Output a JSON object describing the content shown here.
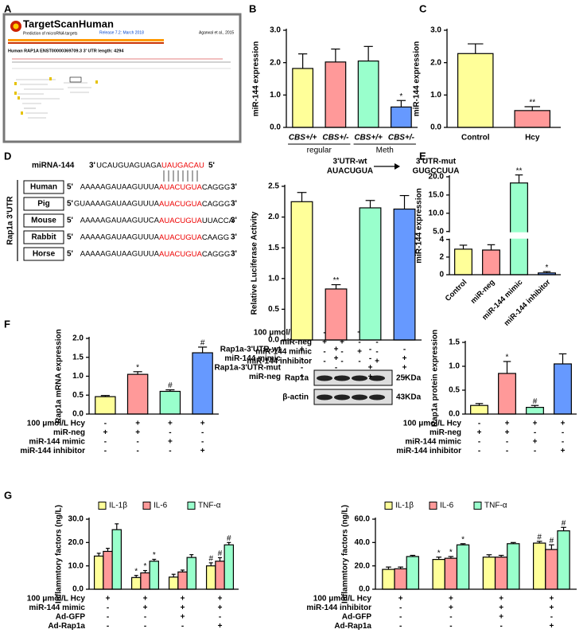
{
  "panels": [
    "A",
    "B",
    "C",
    "D",
    "E",
    "F",
    "G"
  ],
  "targetscan": {
    "logo": "TargetScanHuman",
    "tagline": "Prediction of microRNA targets",
    "release": "Release 7.2: March 2018",
    "citation": "Agarwal et al., 2015",
    "transcript": "Human RAP1A ENST00000369709.3  3' UTR length: 4294"
  },
  "alignment": {
    "mirna_name": "miRNA-144",
    "mirna_ends": [
      "3'",
      "5'"
    ],
    "mirna_seq": [
      "UCAUGUAGUAGA",
      "UAUGACAU"
    ],
    "ends": [
      "5'",
      "3'"
    ],
    "title": "Rap1a 3'UTR",
    "species": [
      {
        "name": "Human",
        "seq": [
          "AAAAAGAUAAGUUUA",
          "AUACUGUA",
          "CAGGG"
        ]
      },
      {
        "name": "Pig",
        "seq": [
          "GUAAAAGAUAAGUUUA",
          "AUACUGUA",
          "CAGGG"
        ]
      },
      {
        "name": "Mouse",
        "seq": [
          "AAAAAGAUAAGUUCA",
          "AUACUGUA",
          "UUACCA"
        ]
      },
      {
        "name": "Rabbit",
        "seq": [
          "AAAAAGAUAAGUUUA",
          "AUACUGUA",
          "CAAGG"
        ]
      },
      {
        "name": "Horse",
        "seq": [
          "AAAAAGAUAAGUUUA",
          "AUACUGUA",
          "CAGGG"
        ]
      }
    ]
  },
  "utr_change": {
    "wt_label": "3'UTR-wt",
    "wt_seq": "AUACUGUA",
    "mut_label": "3'UTR-mut",
    "mut_seq": "GUGCCUUA"
  },
  "blot": {
    "conditions": [
      {
        "label": "100 μmol/L Hcy",
        "marks": [
          "-",
          "+",
          "+",
          "+"
        ]
      },
      {
        "label": "miR-neg",
        "marks": [
          "+",
          "+",
          "-",
          "-"
        ]
      },
      {
        "label": "miR-144 mimic",
        "marks": [
          "-",
          "-",
          "+",
          "-"
        ]
      },
      {
        "label": "miR-144 inhibitor",
        "marks": [
          "-",
          "-",
          "-",
          "+"
        ]
      }
    ],
    "bands": [
      {
        "label": "Rap1a",
        "size": "25KDa"
      },
      {
        "label": "β-actin",
        "size": "43KDa"
      }
    ]
  },
  "chart_data": [
    {
      "type": "bar",
      "ylabel": "miR-144 expression",
      "categories": [
        "CBS+/+",
        "CBS+/-",
        "CBS+/+",
        "CBS+/-"
      ],
      "group_labels": [
        "regular",
        "Meth"
      ],
      "values": [
        1.82,
        2.02,
        2.05,
        0.63
      ],
      "errors": [
        0.45,
        0.4,
        0.45,
        0.2
      ],
      "annotations": [
        null,
        null,
        null,
        "*"
      ],
      "colors": [
        "#ffff99",
        "#ff9999",
        "#99ffcc",
        "#6699ff"
      ],
      "ylim": [
        0,
        3
      ],
      "yticks": [
        {
          "value": 0,
          "label": "0.0"
        },
        {
          "value": 1,
          "label": "1.0"
        },
        {
          "value": 2,
          "label": "2.0"
        },
        {
          "value": 3,
          "label": "3.0"
        }
      ]
    },
    {
      "type": "bar",
      "ylabel": "miR-144  expression",
      "categories": [
        "Control",
        "Hcy"
      ],
      "values": [
        2.28,
        0.52
      ],
      "errors": [
        0.3,
        0.12
      ],
      "annotations": [
        null,
        "**"
      ],
      "colors": [
        "#ffff99",
        "#ff9999"
      ],
      "ylim": [
        0,
        3
      ],
      "yticks": [
        {
          "value": 0,
          "label": "0.0"
        },
        {
          "value": 1,
          "label": "1.0"
        },
        {
          "value": 2,
          "label": "2.0"
        },
        {
          "value": 3,
          "label": "3.0"
        }
      ]
    },
    {
      "type": "bar",
      "ylabel": "Relative Luciferase Activity",
      "values": [
        2.25,
        0.83,
        2.15,
        2.13
      ],
      "errors": [
        0.15,
        0.07,
        0.12,
        0.22
      ],
      "annotations": [
        null,
        "**",
        null,
        null
      ],
      "colors": [
        "#ffff99",
        "#ff9999",
        "#99ffcc",
        "#6699ff"
      ],
      "ylim": [
        0,
        2.5
      ],
      "yticks": [
        {
          "value": 0,
          "label": "0.0"
        },
        0.5,
        {
          "value": 1,
          "label": "1.0"
        },
        1.5,
        {
          "value": 2,
          "label": "2.0"
        },
        2.5
      ],
      "conditions": [
        {
          "label": "Rap1a-3'UTR-wt",
          "marks": [
            "+",
            "+",
            "-",
            "-"
          ]
        },
        {
          "label": "miR-144 mimic",
          "marks": [
            "-",
            "+",
            "-",
            "+"
          ]
        },
        {
          "label": "Rap1a-3'UTR-mut",
          "marks": [
            "-",
            "-",
            "+",
            "+"
          ]
        },
        {
          "label": "miR-neg",
          "marks": [
            "+",
            "-",
            "+",
            "-"
          ]
        }
      ]
    },
    {
      "type": "bar",
      "ylabel": "miR-144 expression",
      "categories": [
        "Control",
        "miR-neg",
        "miR-144 mimic",
        "miR-144 inhibitor"
      ],
      "values": [
        2.9,
        2.8,
        18.3,
        0.2
      ],
      "errors": [
        0.45,
        0.6,
        2.2,
        0.15
      ],
      "annotations": [
        null,
        null,
        "**",
        "*"
      ],
      "colors": [
        "#ffff99",
        "#ff9999",
        "#99ffcc",
        "#6699ff"
      ],
      "ylim": [
        0,
        20
      ],
      "ybreak": [
        4,
        5
      ],
      "yticks": [
        0,
        2,
        4,
        {
          "value": 5,
          "label": "5.0"
        },
        {
          "value": 10,
          "label": "10.0"
        },
        {
          "value": 15,
          "label": "15.0"
        },
        {
          "value": 20,
          "label": "20.0"
        }
      ]
    },
    {
      "type": "bar",
      "ylabel": "Rap1a mRNA expression",
      "values": [
        0.46,
        1.05,
        0.6,
        1.62
      ],
      "errors": [
        0.03,
        0.07,
        0.04,
        0.15
      ],
      "annotations": [
        null,
        "*",
        "#",
        "#"
      ],
      "colors": [
        "#ffff99",
        "#ff9999",
        "#99ffcc",
        "#6699ff"
      ],
      "ylim": [
        0,
        2
      ],
      "yticks": [
        {
          "value": 0,
          "label": "0.0"
        },
        0.5,
        {
          "value": 1,
          "label": "1.0"
        },
        1.5,
        {
          "value": 2,
          "label": "2.0"
        }
      ],
      "conditions": [
        {
          "label": "100 μmol/L Hcy",
          "marks": [
            "-",
            "+",
            "+",
            "+"
          ]
        },
        {
          "label": "miR-neg",
          "marks": [
            "+",
            "+",
            "-",
            "-"
          ]
        },
        {
          "label": "miR-144 mimic",
          "marks": [
            "-",
            "-",
            "+",
            "-"
          ]
        },
        {
          "label": "miR-144 inhibitor",
          "marks": [
            "-",
            "-",
            "-",
            "+"
          ]
        }
      ]
    },
    {
      "type": "bar",
      "ylabel": "Rap1a protein expression",
      "values": [
        0.18,
        0.85,
        0.14,
        1.05
      ],
      "errors": [
        0.04,
        0.25,
        0.04,
        0.21
      ],
      "annotations": [
        null,
        "*",
        "#",
        null
      ],
      "colors": [
        "#ffff99",
        "#ff9999",
        "#99ffcc",
        "#6699ff"
      ],
      "ylim": [
        0,
        1.5
      ],
      "yticks": [
        {
          "value": 0,
          "label": "0.0"
        },
        0.5,
        {
          "value": 1,
          "label": "1.0"
        },
        1.5
      ],
      "conditions": [
        {
          "label": "100 μmol/L Hcy",
          "marks": [
            "-",
            "+",
            "+",
            "+"
          ]
        },
        {
          "label": "miR-neg",
          "marks": [
            "+",
            "+",
            "-",
            "-"
          ]
        },
        {
          "label": "miR-144 mimic",
          "marks": [
            "-",
            "-",
            "+",
            "-"
          ]
        },
        {
          "label": "miR-144 inhibitor",
          "marks": [
            "-",
            "-",
            "-",
            "+"
          ]
        }
      ]
    },
    {
      "type": "bar",
      "ylabel": "Inflammtory factors (ng/L)",
      "ylim": [
        0,
        30
      ],
      "yticks": [
        {
          "value": 0,
          "label": "0.0"
        },
        {
          "value": 10,
          "label": "10.0"
        },
        {
          "value": 20,
          "label": "20.0"
        },
        {
          "value": 30,
          "label": "30.0"
        }
      ],
      "series": [
        {
          "name": "IL-1β",
          "color": "#ffff99",
          "values": [
            14.2,
            5.0,
            5.2,
            10.0
          ],
          "errors": [
            1.2,
            0.9,
            1.2,
            1.3
          ],
          "annotations": [
            null,
            "*",
            null,
            "#"
          ]
        },
        {
          "name": "IL-6",
          "color": "#ff9999",
          "values": [
            16.2,
            7.0,
            7.4,
            12.0
          ],
          "errors": [
            1.3,
            1.0,
            0.8,
            1.5
          ],
          "annotations": [
            null,
            "*",
            null,
            "#"
          ]
        },
        {
          "name": "TNF-α",
          "color": "#99ffcc",
          "values": [
            25.5,
            12.0,
            13.6,
            19.0
          ],
          "errors": [
            2.5,
            0.8,
            1.2,
            1.0
          ],
          "annotations": [
            null,
            "*",
            null,
            "#"
          ]
        }
      ],
      "conditions": [
        {
          "label": "100 μmol/L Hcy",
          "marks": [
            "+",
            "+",
            "+",
            "+"
          ]
        },
        {
          "label": "miR-144 mimic",
          "marks": [
            "-",
            "+",
            "+",
            "+"
          ]
        },
        {
          "label": "Ad-GFP",
          "marks": [
            "-",
            "-",
            "+",
            "-"
          ]
        },
        {
          "label": "Ad-Rap1a",
          "marks": [
            "-",
            "-",
            "-",
            "+"
          ]
        }
      ]
    },
    {
      "type": "bar",
      "ylabel": "Inflammtory factors (ng/L)",
      "ylim": [
        0,
        60
      ],
      "yticks": [
        {
          "value": 0,
          "label": "0.0"
        },
        {
          "value": 20,
          "label": "20.0"
        },
        {
          "value": 40,
          "label": "40.0"
        },
        {
          "value": 60,
          "label": "60.0"
        }
      ],
      "series": [
        {
          "name": "IL-1β",
          "color": "#ffff99",
          "values": [
            17,
            25.5,
            27.5,
            39.5
          ],
          "errors": [
            2,
            2,
            2,
            1.5
          ],
          "annotations": [
            null,
            "*",
            null,
            "#"
          ]
        },
        {
          "name": "IL-6",
          "color": "#ff9999",
          "values": [
            17.5,
            26.5,
            27.5,
            34
          ],
          "errors": [
            1.5,
            1.5,
            1.5,
            4
          ],
          "annotations": [
            null,
            "*",
            null,
            "#"
          ]
        },
        {
          "name": "TNF-α",
          "color": "#99ffcc",
          "values": [
            28,
            38,
            39,
            50
          ],
          "errors": [
            1,
            1,
            1,
            3
          ],
          "annotations": [
            null,
            "*",
            null,
            "#"
          ]
        }
      ],
      "conditions": [
        {
          "label": "100 μmol/L Hcy",
          "marks": [
            "+",
            "+",
            "+",
            "+"
          ]
        },
        {
          "label": "miR-144 inhibitor",
          "marks": [
            "-",
            "+",
            "+",
            "+"
          ]
        },
        {
          "label": "Ad-GFP",
          "marks": [
            "-",
            "-",
            "+",
            "-"
          ]
        },
        {
          "label": "Ad-Rap1a",
          "marks": [
            "-",
            "-",
            "-",
            "+"
          ]
        }
      ]
    }
  ]
}
